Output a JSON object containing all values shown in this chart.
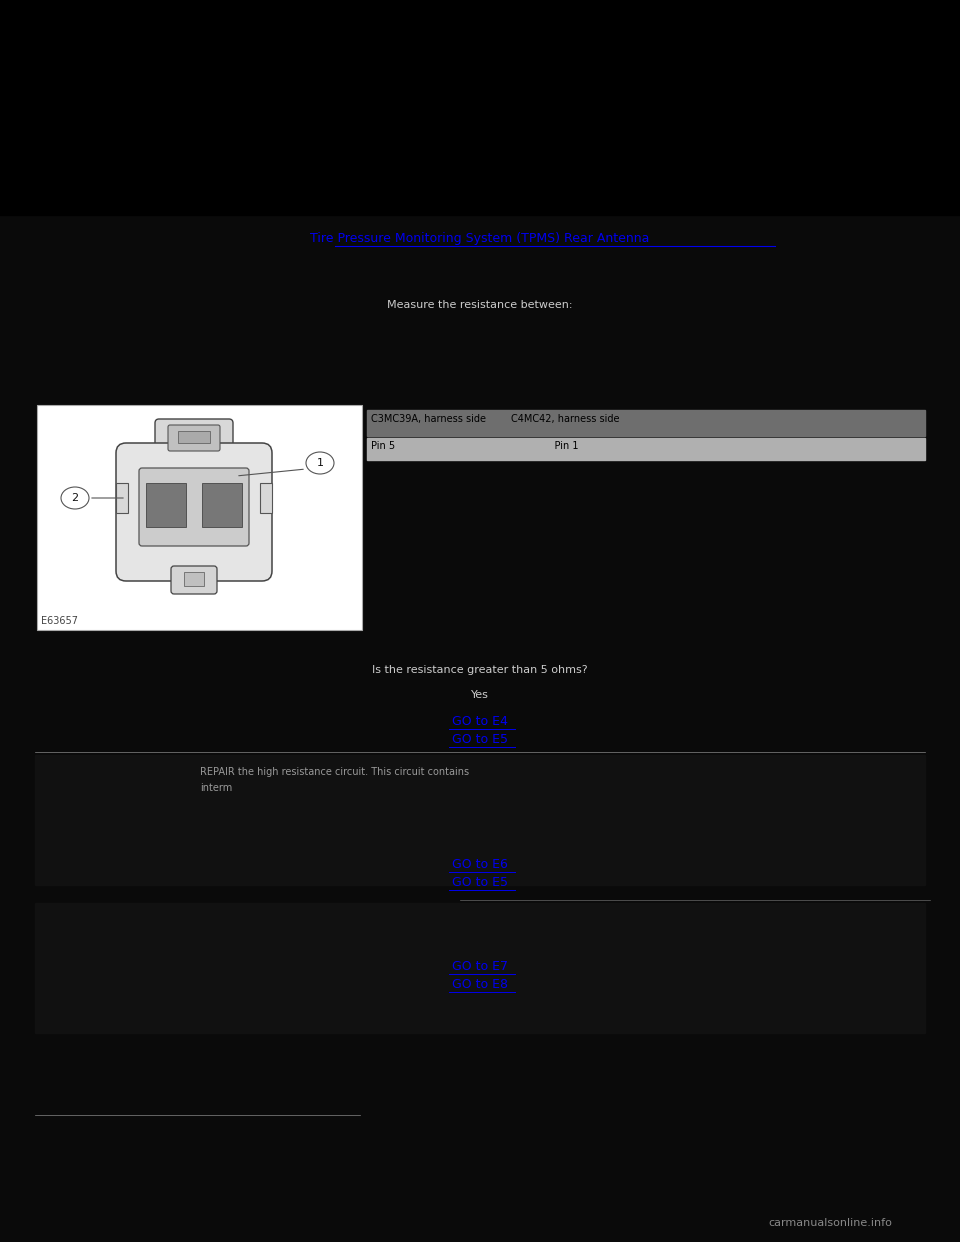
{
  "bg_color": "#0a0a0a",
  "black": "#000000",
  "white": "#ffffff",
  "blue": "#0000ee",
  "text_light": "#cccccc",
  "text_dark": "#111111",
  "gray_dark_row": "#6e6e6e",
  "gray_light_row": "#b0b0b0",
  "title_link": "Tire Pressure Monitoring System (TPMS) Rear Antenna",
  "measure_header": "Measure the resistance between:",
  "connector1_label": "C3MC39A, harness side",
  "connector2_label": "C4MC42, harness side",
  "pin1_label": "Pin 5",
  "pin2_label": "Pin 1",
  "question": "Is the resistance greater than 5 ohms?",
  "yes_label": "Yes",
  "repair_line1": "REPAIR the high resistance circuit. This circuit contains",
  "repair_line2": "interm",
  "go_links": [
    "GO to E4",
    "GO to E5",
    "GO to E6",
    "GO to E5",
    "GO to E7",
    "GO to E8"
  ],
  "image_ref": "E63657",
  "watermark": "carmanualsonline.info",
  "sep_color": "#888888",
  "sep_color2": "#666666"
}
